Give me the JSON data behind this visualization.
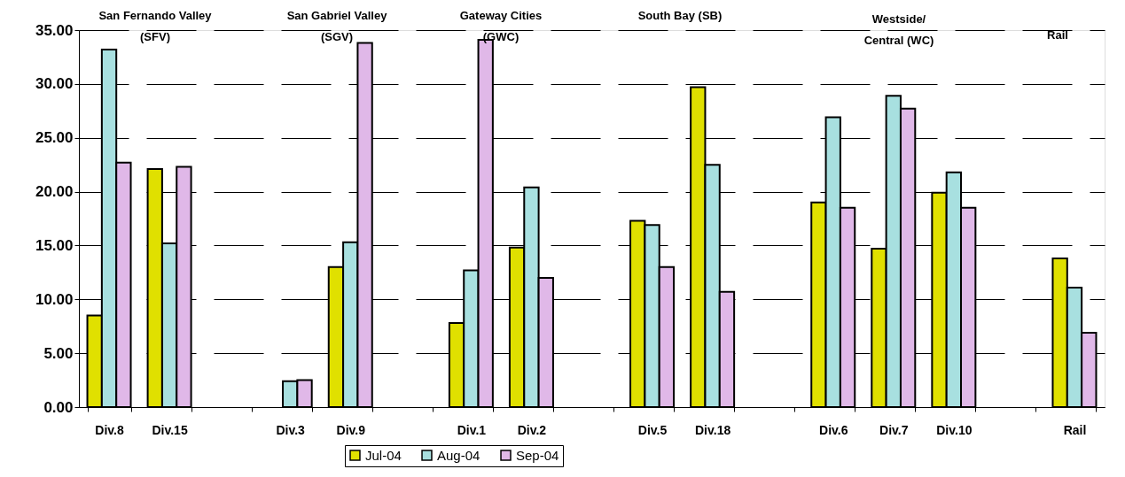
{
  "chart_data": {
    "type": "bar",
    "categories": [
      "Div.8",
      "Div.15",
      null,
      "Div.3",
      "Div.9",
      null,
      "Div.1",
      "Div.2",
      null,
      "Div.5",
      "Div.18",
      null,
      "Div.6",
      "Div.7",
      "Div.10",
      null,
      "Rail"
    ],
    "series": [
      {
        "name": "Jul-04",
        "color": "#e0e000",
        "values": [
          8.5,
          22.1,
          null,
          null,
          13.0,
          null,
          7.8,
          14.8,
          null,
          17.3,
          29.7,
          null,
          19.0,
          14.7,
          19.9,
          null,
          13.8
        ]
      },
      {
        "name": "Aug-04",
        "color": "#a8e0e0",
        "values": [
          33.2,
          15.2,
          null,
          2.4,
          15.3,
          null,
          12.7,
          20.4,
          null,
          16.9,
          22.5,
          null,
          26.9,
          28.9,
          21.8,
          null,
          11.1
        ]
      },
      {
        "name": "Sep-04",
        "color": "#e0b8e8",
        "values": [
          22.7,
          22.3,
          null,
          2.5,
          33.8,
          null,
          34.1,
          12.0,
          null,
          13.0,
          10.7,
          null,
          18.5,
          27.7,
          18.5,
          null,
          6.9
        ]
      }
    ],
    "ylim": [
      0,
      35
    ],
    "yticks": [
      {
        "value": 0,
        "label": "0.00"
      },
      {
        "value": 5,
        "label": "5.00"
      },
      {
        "value": 10,
        "label": "10.00"
      },
      {
        "value": 15,
        "label": "15.00"
      },
      {
        "value": 20,
        "label": "20.00"
      },
      {
        "value": 25,
        "label": "25.00"
      },
      {
        "value": 30,
        "label": "30.00"
      },
      {
        "value": 35,
        "label": "35.00"
      }
    ],
    "grid": "y",
    "legend": "bottom",
    "annotations": [
      "San Fernando Valley\n(SFV)",
      "San Gabriel Valley\n(SGV)",
      "Gateway Cities\n(GWC)",
      "South Bay (SB)",
      "Westside/\nCentral (WC)",
      "Rail"
    ]
  }
}
